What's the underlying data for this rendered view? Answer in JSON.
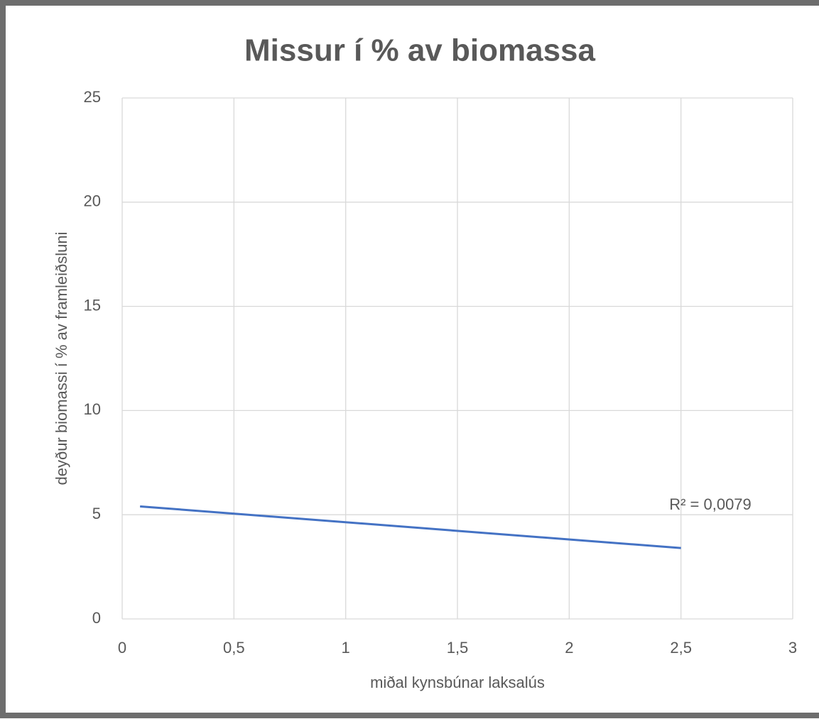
{
  "chart_data": {
    "type": "line",
    "title": "Missur í % av biomassa",
    "xlabel": "miðal kynsbúnar laksalús",
    "ylabel": "deyður biomassi í % av framleiðsluni",
    "annotation": "R² = 0,0079",
    "x": [
      0.08,
      2.5
    ],
    "series": [
      {
        "color": "#4472c4",
        "values": [
          5.4,
          3.4
        ]
      }
    ],
    "xlim": [
      0,
      3
    ],
    "xticks": [
      0,
      {
        "value": 0.5,
        "label": "0,5"
      },
      1,
      {
        "value": 1.5,
        "label": "1,5"
      },
      2,
      {
        "value": 2.5,
        "label": "2,5"
      },
      3
    ],
    "ylim": [
      0,
      25
    ],
    "yticks": [
      0,
      5,
      10,
      15,
      20,
      25
    ],
    "grid": true
  }
}
